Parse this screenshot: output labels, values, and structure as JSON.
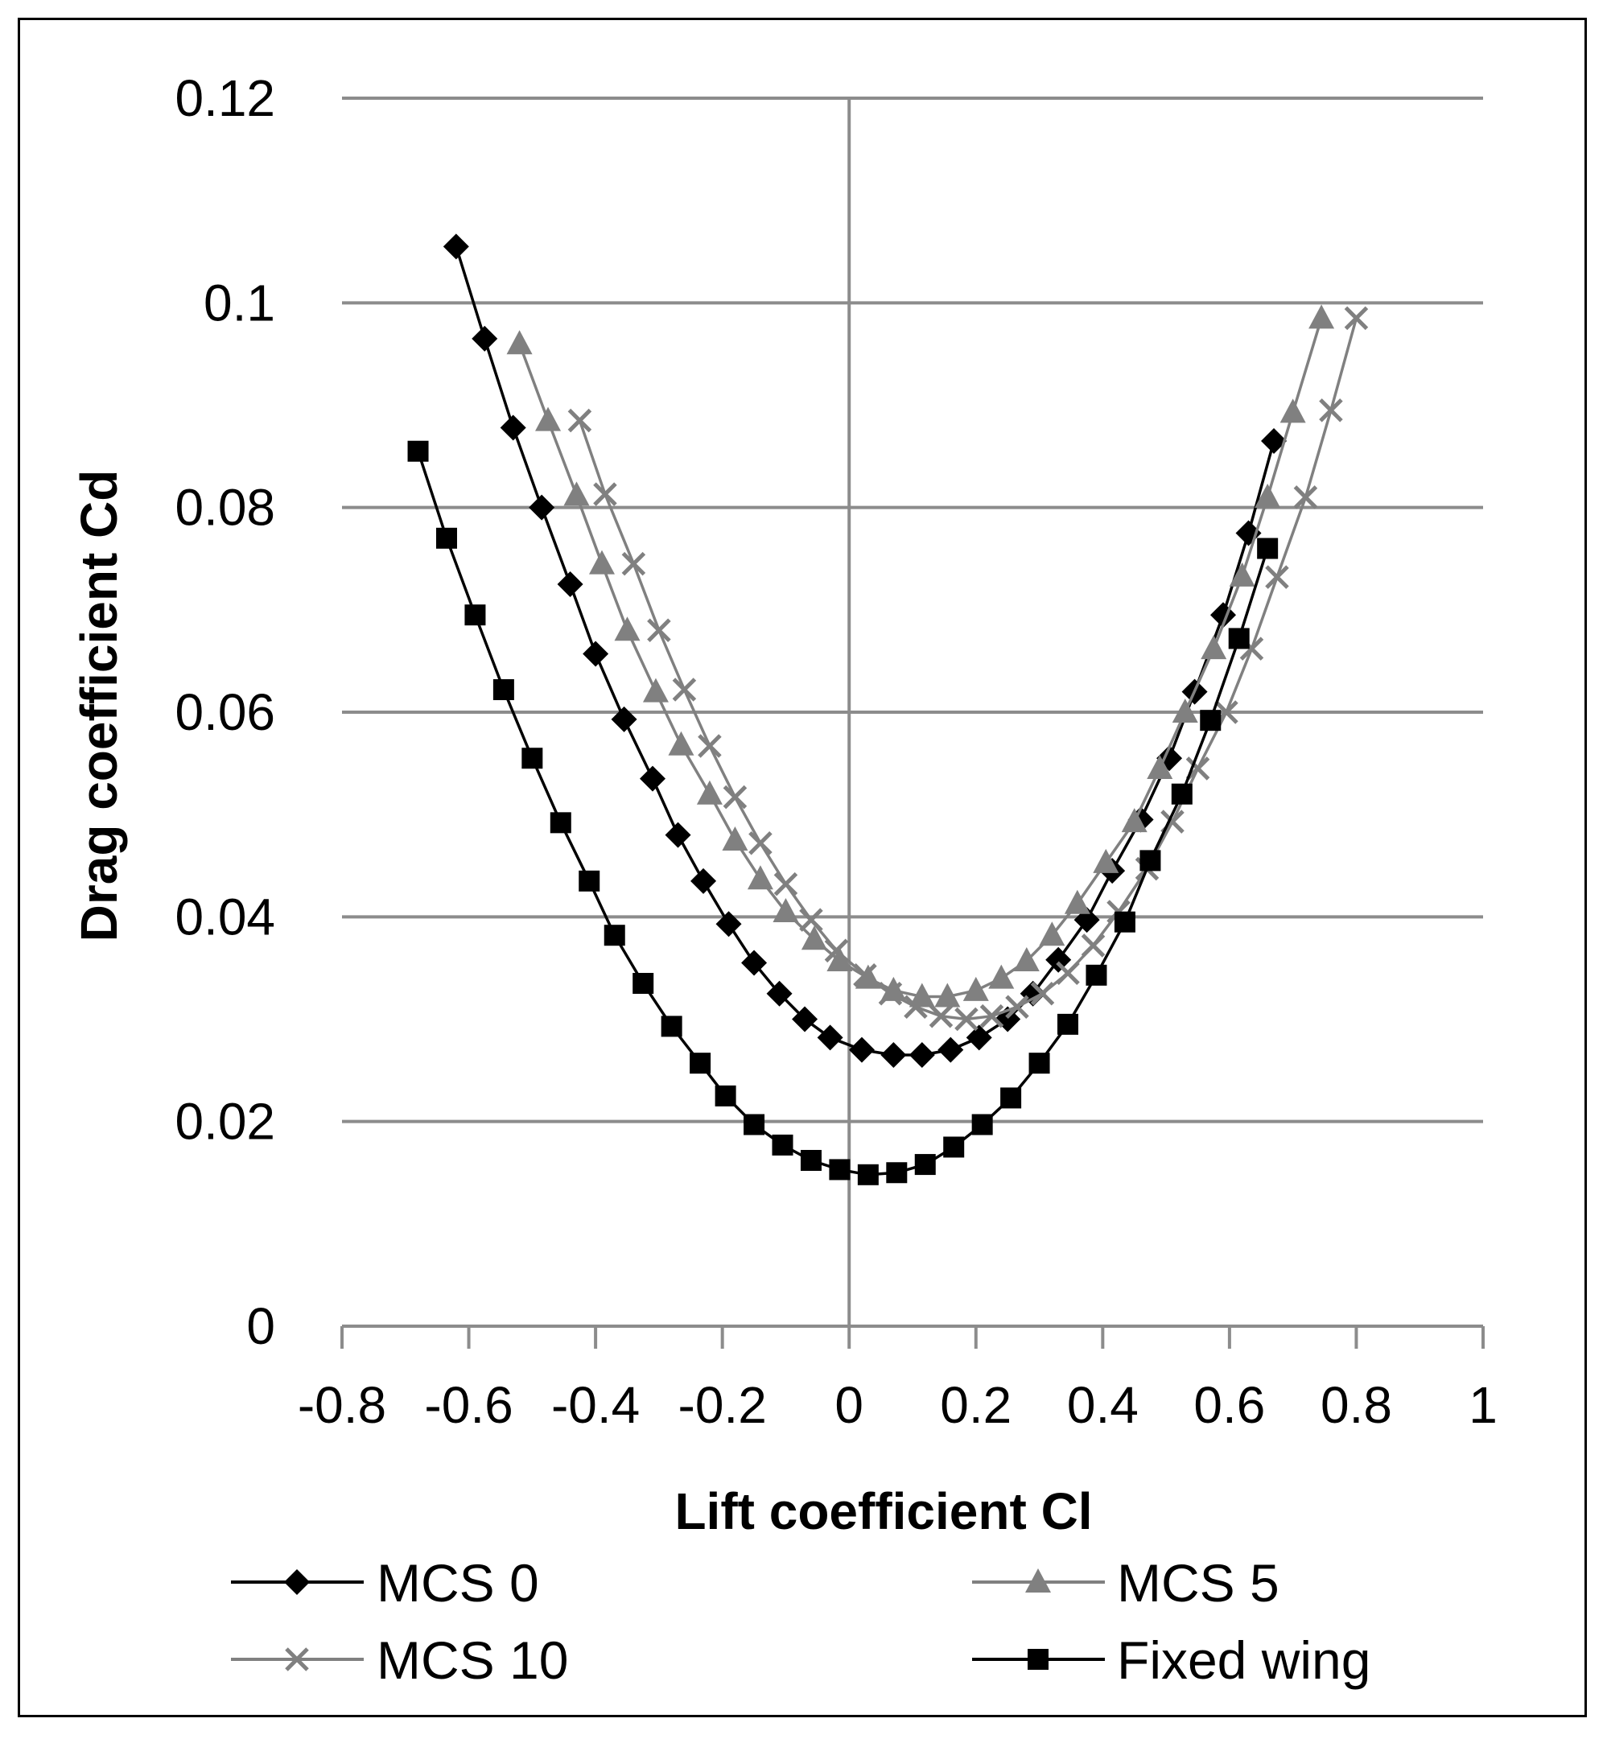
{
  "chart_data": {
    "type": "line",
    "title": "",
    "xlabel": "Lift coefficient Cl",
    "ylabel": "Drag coefficient Cd",
    "xlim": [
      -0.8,
      1
    ],
    "ylim": [
      0,
      0.12
    ],
    "xticks": [
      -0.8,
      -0.6,
      -0.4,
      -0.2,
      0,
      0.2,
      0.4,
      0.6,
      0.8,
      1
    ],
    "xtick_labels": [
      "-0.8",
      "-0.6",
      "-0.4",
      "-0.2",
      "0",
      "0.2",
      "0.4",
      "0.6",
      "0.8",
      "1"
    ],
    "yticks": [
      0,
      0.02,
      0.04,
      0.06,
      0.08,
      0.1,
      0.12
    ],
    "ytick_labels": [
      "0",
      "0.02",
      "0.04",
      "0.06",
      "0.08",
      "0.1",
      "0.12"
    ],
    "grid": "horizontal",
    "legend_position": "bottom",
    "series": [
      {
        "name": "MCS 0",
        "color": "#000000",
        "marker": "diamond",
        "x": [
          -0.62,
          -0.575,
          -0.53,
          -0.485,
          -0.44,
          -0.4,
          -0.355,
          -0.31,
          -0.27,
          -0.23,
          -0.19,
          -0.15,
          -0.11,
          -0.07,
          -0.03,
          0.02,
          0.07,
          0.115,
          0.16,
          0.205,
          0.25,
          0.29,
          0.33,
          0.375,
          0.415,
          0.46,
          0.505,
          0.545,
          0.59,
          0.63,
          0.67
        ],
        "y": [
          0.1055,
          0.0965,
          0.0878,
          0.08,
          0.0725,
          0.0657,
          0.0593,
          0.0535,
          0.048,
          0.0435,
          0.0393,
          0.0355,
          0.0325,
          0.03,
          0.0282,
          0.027,
          0.0265,
          0.0265,
          0.027,
          0.0282,
          0.03,
          0.0325,
          0.0358,
          0.0397,
          0.0445,
          0.0495,
          0.0555,
          0.062,
          0.0695,
          0.0775,
          0.0865
        ]
      },
      {
        "name": "MCS 5",
        "color": "#808080",
        "marker": "triangle",
        "x": [
          -0.52,
          -0.475,
          -0.43,
          -0.39,
          -0.35,
          -0.305,
          -0.265,
          -0.22,
          -0.18,
          -0.14,
          -0.1,
          -0.055,
          -0.015,
          0.03,
          0.07,
          0.115,
          0.155,
          0.2,
          0.24,
          0.28,
          0.32,
          0.36,
          0.405,
          0.45,
          0.49,
          0.53,
          0.575,
          0.62,
          0.66,
          0.7,
          0.745
        ],
        "y": [
          0.096,
          0.0885,
          0.0812,
          0.0745,
          0.068,
          0.062,
          0.0568,
          0.052,
          0.0475,
          0.0437,
          0.0405,
          0.0378,
          0.0357,
          0.034,
          0.0328,
          0.0322,
          0.0322,
          0.0328,
          0.034,
          0.0357,
          0.0382,
          0.0413,
          0.0453,
          0.0493,
          0.0545,
          0.06,
          0.0662,
          0.0733,
          0.081,
          0.0893,
          0.0985
        ]
      },
      {
        "name": "MCS 10",
        "color": "#808080",
        "marker": "x",
        "x": [
          -0.425,
          -0.385,
          -0.34,
          -0.3,
          -0.26,
          -0.22,
          -0.18,
          -0.14,
          -0.1,
          -0.06,
          -0.02,
          0.025,
          0.065,
          0.105,
          0.145,
          0.185,
          0.225,
          0.265,
          0.305,
          0.345,
          0.385,
          0.425,
          0.47,
          0.51,
          0.55,
          0.595,
          0.635,
          0.675,
          0.72,
          0.76,
          0.8
        ],
        "y": [
          0.0885,
          0.0813,
          0.0745,
          0.068,
          0.0622,
          0.0567,
          0.0517,
          0.0472,
          0.0432,
          0.0397,
          0.0367,
          0.0343,
          0.0325,
          0.0312,
          0.0303,
          0.03,
          0.0303,
          0.0312,
          0.0325,
          0.0345,
          0.0372,
          0.0405,
          0.0447,
          0.0493,
          0.0545,
          0.06,
          0.0662,
          0.0732,
          0.081,
          0.0895,
          0.0985
        ]
      },
      {
        "name": "Fixed wing",
        "color": "#000000",
        "marker": "square",
        "x": [
          -0.68,
          -0.635,
          -0.59,
          -0.545,
          -0.5,
          -0.455,
          -0.41,
          -0.37,
          -0.325,
          -0.28,
          -0.235,
          -0.195,
          -0.15,
          -0.105,
          -0.06,
          -0.015,
          0.03,
          0.075,
          0.12,
          0.165,
          0.21,
          0.255,
          0.3,
          0.345,
          0.39,
          0.435,
          0.475,
          0.525,
          0.57,
          0.615,
          0.66
        ],
        "y": [
          0.0855,
          0.077,
          0.0695,
          0.0622,
          0.0555,
          0.0492,
          0.0435,
          0.0382,
          0.0335,
          0.0293,
          0.0257,
          0.0225,
          0.0197,
          0.0177,
          0.0162,
          0.0153,
          0.0148,
          0.015,
          0.0158,
          0.0175,
          0.0197,
          0.0223,
          0.0257,
          0.0295,
          0.0343,
          0.0395,
          0.0455,
          0.052,
          0.0592,
          0.0672,
          0.076
        ]
      }
    ]
  }
}
